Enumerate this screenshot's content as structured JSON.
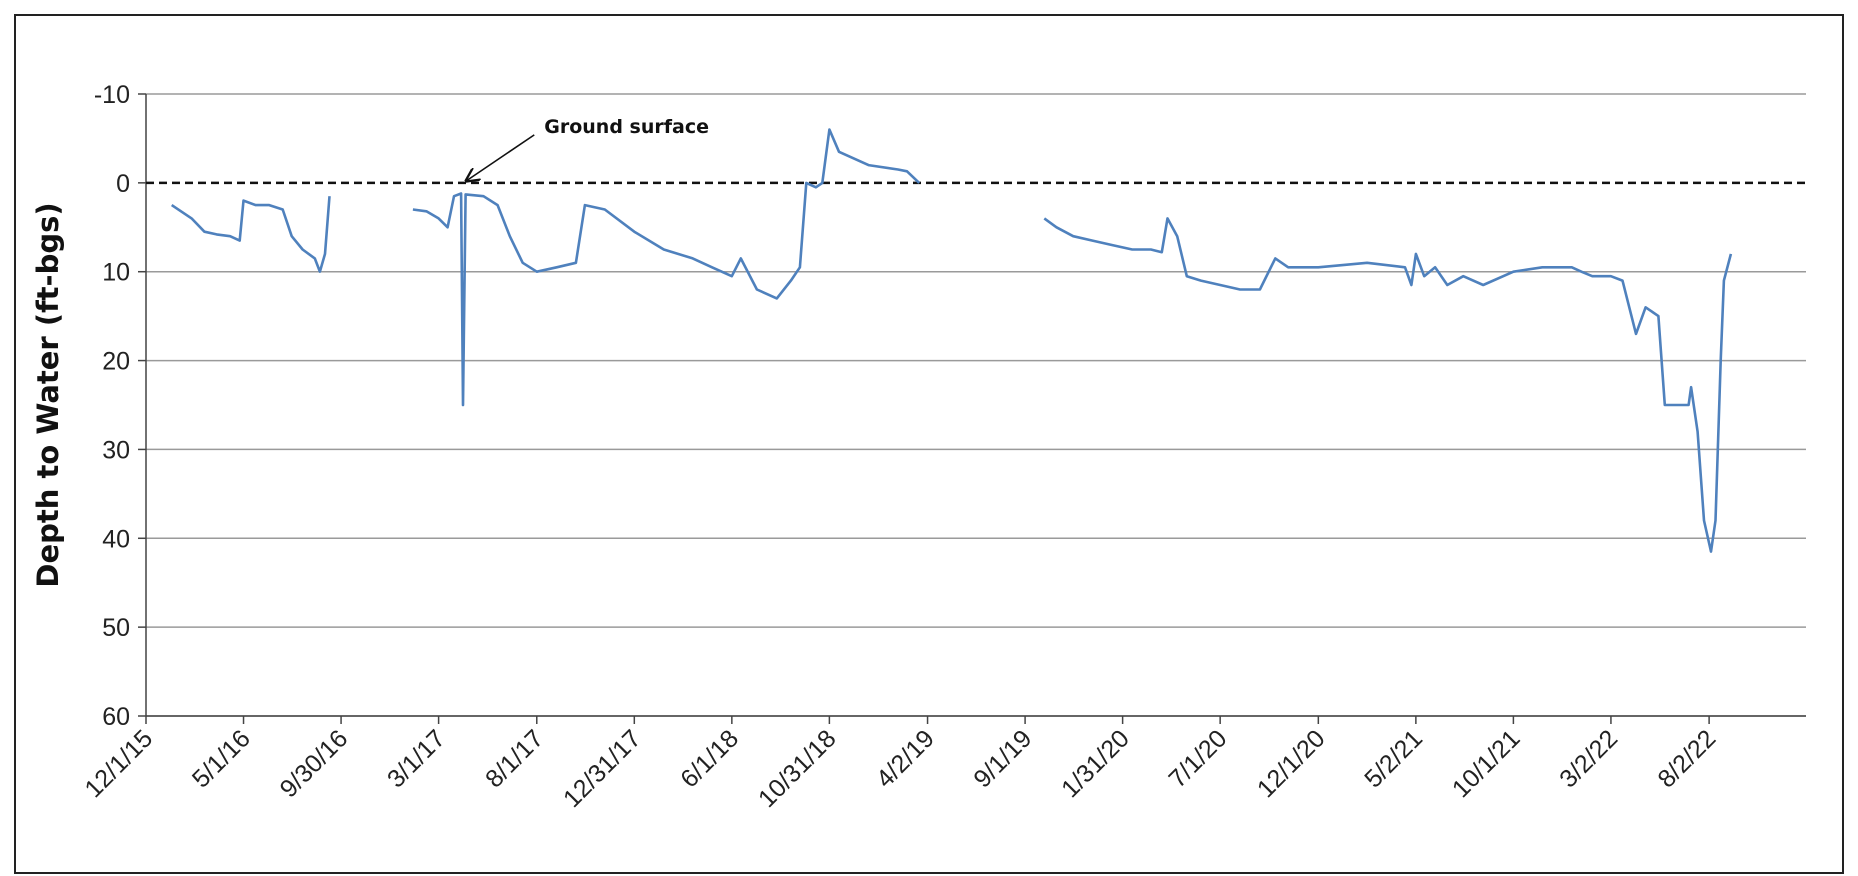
{
  "chart_data": {
    "type": "line",
    "title": "",
    "xlabel": "",
    "ylabel": "Depth to Water (ft-bgs)",
    "y_inverted": true,
    "ylim": [
      -10,
      60
    ],
    "yticks": [
      -10,
      0,
      10,
      20,
      30,
      40,
      50,
      60
    ],
    "xlim": [
      "2015-12-01",
      "2022-12-31"
    ],
    "xtick_labels": [
      "12/1/15",
      "5/1/16",
      "9/30/16",
      "3/1/17",
      "8/1/17",
      "12/31/17",
      "6/1/18",
      "10/31/18",
      "4/2/19",
      "9/1/19",
      "1/31/20",
      "7/1/20",
      "12/1/20",
      "5/2/21",
      "10/1/21",
      "3/2/22",
      "8/2/22"
    ],
    "xtick_dates": [
      "2015-12-01",
      "2016-05-01",
      "2016-09-30",
      "2017-03-01",
      "2017-08-01",
      "2017-12-31",
      "2018-06-01",
      "2018-10-31",
      "2019-04-02",
      "2019-09-01",
      "2020-01-31",
      "2020-07-01",
      "2020-12-01",
      "2021-05-02",
      "2021-10-01",
      "2022-03-02",
      "2022-08-02"
    ],
    "grid": true,
    "line_color": "#4f81bd",
    "reference_line": {
      "y": 0,
      "style": "dashed",
      "color": "#111111"
    },
    "annotations": [
      {
        "text": "Ground surface",
        "x": "2017-04-10",
        "y": 0
      }
    ],
    "series": [
      {
        "name": "",
        "points": [
          [
            "2016-01-10",
            2.5
          ],
          [
            "2016-02-10",
            4
          ],
          [
            "2016-03-01",
            5.5
          ],
          [
            "2016-03-20",
            5.8
          ],
          [
            "2016-04-10",
            6
          ],
          [
            "2016-04-25",
            6.5
          ],
          [
            "2016-05-01",
            2
          ],
          [
            "2016-05-20",
            2.5
          ],
          [
            "2016-06-10",
            2.5
          ],
          [
            "2016-07-01",
            3
          ],
          [
            "2016-07-15",
            6
          ],
          [
            "2016-08-01",
            7.5
          ],
          [
            "2016-08-20",
            8.5
          ],
          [
            "2016-08-28",
            10
          ],
          [
            "2016-09-05",
            8
          ],
          [
            "2016-09-12",
            1.5
          ]
        ]
      },
      {
        "name": "",
        "points": [
          [
            "2017-01-20",
            3
          ],
          [
            "2017-02-10",
            3.2
          ],
          [
            "2017-03-01",
            4
          ],
          [
            "2017-03-15",
            5
          ],
          [
            "2017-03-25",
            1.5
          ],
          [
            "2017-04-05",
            1.2
          ],
          [
            "2017-04-08",
            25
          ],
          [
            "2017-04-12",
            1.3
          ],
          [
            "2017-05-10",
            1.5
          ],
          [
            "2017-06-01",
            2.5
          ],
          [
            "2017-06-20",
            6
          ],
          [
            "2017-07-10",
            9
          ],
          [
            "2017-08-01",
            10
          ],
          [
            "2017-09-01",
            9.5
          ],
          [
            "2017-10-01",
            9
          ],
          [
            "2017-10-15",
            2.5
          ],
          [
            "2017-11-15",
            3
          ],
          [
            "2017-12-31",
            5.5
          ],
          [
            "2018-02-15",
            7.5
          ],
          [
            "2018-04-01",
            8.5
          ],
          [
            "2018-05-01",
            9.5
          ],
          [
            "2018-06-01",
            10.5
          ],
          [
            "2018-06-15",
            8.5
          ],
          [
            "2018-07-10",
            12
          ],
          [
            "2018-08-10",
            13
          ],
          [
            "2018-09-01",
            11
          ],
          [
            "2018-09-15",
            9.5
          ],
          [
            "2018-09-25",
            0
          ],
          [
            "2018-10-10",
            0.5
          ],
          [
            "2018-10-20",
            0
          ],
          [
            "2018-10-31",
            -6
          ],
          [
            "2018-11-15",
            -3.5
          ],
          [
            "2018-12-31",
            -2
          ],
          [
            "2019-02-15",
            -1.5
          ],
          [
            "2019-03-01",
            -1.3
          ],
          [
            "2019-03-20",
            0
          ]
        ]
      },
      {
        "name": "",
        "points": [
          [
            "2019-10-01",
            4
          ],
          [
            "2019-10-20",
            5
          ],
          [
            "2019-11-15",
            6
          ],
          [
            "2019-12-15",
            6.5
          ],
          [
            "2020-01-15",
            7
          ],
          [
            "2020-02-15",
            7.5
          ],
          [
            "2020-03-15",
            7.5
          ],
          [
            "2020-04-01",
            7.8
          ],
          [
            "2020-04-10",
            4
          ],
          [
            "2020-04-25",
            6
          ],
          [
            "2020-05-10",
            10.5
          ],
          [
            "2020-06-01",
            11
          ],
          [
            "2020-07-01",
            11.5
          ],
          [
            "2020-08-01",
            12
          ],
          [
            "2020-09-01",
            12
          ],
          [
            "2020-09-25",
            8.5
          ],
          [
            "2020-10-15",
            9.5
          ],
          [
            "2020-12-01",
            9.5
          ],
          [
            "2021-02-15",
            9
          ],
          [
            "2021-04-15",
            9.5
          ],
          [
            "2021-04-25",
            11.5
          ],
          [
            "2021-05-02",
            8
          ],
          [
            "2021-05-15",
            10.5
          ],
          [
            "2021-06-01",
            9.5
          ],
          [
            "2021-06-20",
            11.5
          ],
          [
            "2021-07-15",
            10.5
          ],
          [
            "2021-08-15",
            11.5
          ],
          [
            "2021-10-01",
            10
          ],
          [
            "2021-11-15",
            9.5
          ],
          [
            "2021-12-31",
            9.5
          ],
          [
            "2022-01-15",
            10
          ],
          [
            "2022-02-01",
            10.5
          ],
          [
            "2022-03-02",
            10.5
          ],
          [
            "2022-03-20",
            11
          ],
          [
            "2022-04-10",
            17
          ],
          [
            "2022-04-25",
            14
          ],
          [
            "2022-05-15",
            15
          ],
          [
            "2022-05-25",
            25
          ],
          [
            "2022-06-15",
            25
          ],
          [
            "2022-07-01",
            25
          ],
          [
            "2022-07-05",
            23
          ],
          [
            "2022-07-15",
            28
          ],
          [
            "2022-07-25",
            38
          ],
          [
            "2022-08-05",
            41.5
          ],
          [
            "2022-08-12",
            38
          ],
          [
            "2022-08-20",
            20
          ],
          [
            "2022-08-25",
            11
          ],
          [
            "2022-09-05",
            8
          ]
        ]
      }
    ]
  }
}
